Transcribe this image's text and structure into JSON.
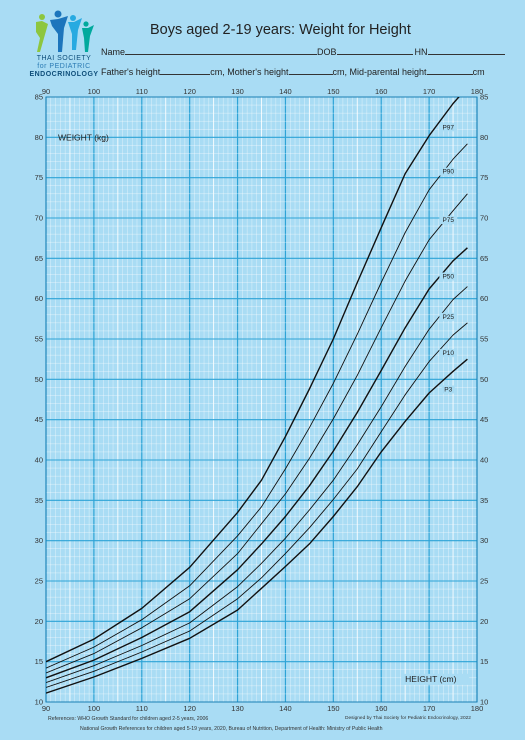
{
  "header": {
    "title": "Boys aged 2-19 years: Weight for Height",
    "logo_line1": "THAI SOCIETY",
    "logo_line2": "for PEDIATRIC",
    "logo_line3": "ENDOCRINOLOGY"
  },
  "form": {
    "name_label": "Name",
    "dob_label": "DOB",
    "hn_label": "HN",
    "father_label": "Father's height",
    "mother_label": "cm, Mother's height",
    "mid_label": "cm, Mid-parental height",
    "unit_label": "cm"
  },
  "footer": {
    "ref1": "References:  WHO Growth Standard for children aged 2-5 years, 2006",
    "ref2": "National Growth References for children aged 5-19 years, 2020, Bureau of Nutrition, Department of Health: Ministry of Public Health",
    "credit": "Designed by Thai Society for Pediatric Endocrinology, 2022"
  },
  "colors": {
    "background": "#a9dcf4",
    "grid_major": "#ffffff",
    "curve": "#111111"
  },
  "chart_data": {
    "type": "line",
    "title": "Boys aged 2-19 years: Weight for Height",
    "xlabel": "HEIGHT (cm)",
    "ylabel": "WEIGHT (kg)",
    "xlim": [
      90,
      180
    ],
    "ylim": [
      10,
      85
    ],
    "x_ticks": [
      90,
      100,
      110,
      120,
      130,
      140,
      150,
      160,
      170,
      180
    ],
    "y_ticks": [
      10,
      15,
      20,
      25,
      30,
      35,
      40,
      45,
      50,
      55,
      60,
      65,
      70,
      75,
      80,
      85
    ],
    "grid": true,
    "series": [
      {
        "name": "P97",
        "x": [
          90,
          100,
          110,
          120,
          130,
          135,
          140,
          145,
          150,
          155,
          160,
          165,
          170,
          175,
          178
        ],
        "y": [
          15.0,
          17.8,
          21.6,
          26.7,
          33.5,
          37.5,
          42.9,
          48.8,
          55.0,
          62.0,
          68.8,
          75.5,
          80.2,
          84.2,
          86.2
        ]
      },
      {
        "name": "P90",
        "x": [
          90,
          100,
          110,
          120,
          130,
          135,
          140,
          145,
          150,
          155,
          160,
          165,
          170,
          175,
          178
        ],
        "y": [
          14.2,
          16.8,
          20.2,
          24.4,
          30.6,
          34.2,
          38.9,
          44.0,
          49.5,
          55.6,
          62.0,
          68.2,
          73.5,
          77.3,
          79.2
        ]
      },
      {
        "name": "P75",
        "x": [
          90,
          100,
          110,
          120,
          130,
          135,
          140,
          145,
          150,
          155,
          160,
          165,
          170,
          175,
          178
        ],
        "y": [
          13.6,
          16.0,
          19.2,
          22.8,
          28.4,
          32.1,
          35.8,
          40.2,
          45.1,
          50.5,
          56.4,
          62.2,
          67.3,
          70.9,
          73.0
        ]
      },
      {
        "name": "P50",
        "x": [
          90,
          100,
          110,
          120,
          130,
          135,
          140,
          145,
          150,
          155,
          160,
          165,
          170,
          175,
          178
        ],
        "y": [
          13.0,
          15.2,
          18.0,
          21.2,
          26.4,
          29.6,
          33.0,
          36.8,
          41.1,
          45.9,
          51.1,
          56.4,
          61.2,
          64.7,
          66.3
        ]
      },
      {
        "name": "P25",
        "x": [
          90,
          100,
          110,
          120,
          130,
          135,
          140,
          145,
          150,
          155,
          160,
          165,
          170,
          175,
          178
        ],
        "y": [
          12.4,
          14.5,
          17.0,
          19.8,
          24.3,
          27.2,
          30.3,
          33.8,
          37.5,
          41.9,
          46.6,
          51.6,
          56.2,
          59.9,
          61.5
        ]
      },
      {
        "name": "P10",
        "x": [
          90,
          100,
          110,
          120,
          130,
          135,
          140,
          145,
          150,
          155,
          160,
          165,
          170,
          175,
          178
        ],
        "y": [
          11.8,
          13.8,
          16.2,
          18.8,
          22.8,
          25.4,
          28.4,
          31.6,
          35.1,
          38.9,
          43.5,
          48.1,
          52.2,
          55.5,
          57.0
        ]
      },
      {
        "name": "P3",
        "x": [
          90,
          100,
          110,
          120,
          130,
          135,
          140,
          145,
          150,
          155,
          160,
          165,
          170,
          175,
          178
        ],
        "y": [
          11.1,
          13.1,
          15.4,
          17.9,
          21.4,
          24.1,
          26.8,
          29.6,
          33.0,
          36.7,
          41.0,
          44.8,
          48.3,
          51.0,
          52.5
        ]
      }
    ],
    "curve_labels": [
      {
        "text": "P97",
        "x": 174,
        "y": 81
      },
      {
        "text": "P90",
        "x": 174,
        "y": 75.5
      },
      {
        "text": "P75",
        "x": 174,
        "y": 69.5
      },
      {
        "text": "P50",
        "x": 174,
        "y": 62.5
      },
      {
        "text": "P25",
        "x": 174,
        "y": 57.5
      },
      {
        "text": "P10",
        "x": 174,
        "y": 53
      },
      {
        "text": "P3",
        "x": 174,
        "y": 48.5
      }
    ]
  }
}
